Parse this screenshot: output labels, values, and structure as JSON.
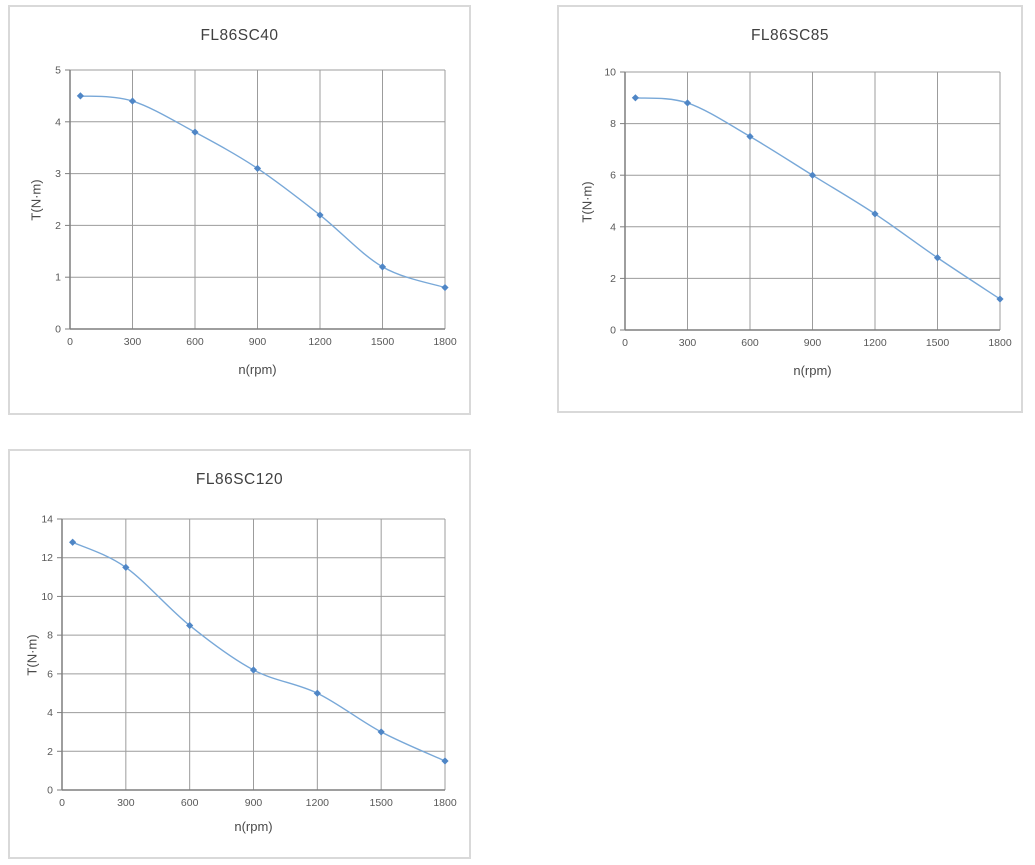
{
  "colors": {
    "grid": "#9c9c9c",
    "axis": "#7f7f7f",
    "panel_border": "#d9d9d9",
    "text": "#595959"
  },
  "chart_data": [
    {
      "type": "line",
      "title": "FL86SC40",
      "xlabel": "n(rpm)",
      "ylabel": "T(N·m)",
      "x": [
        50,
        300,
        600,
        900,
        1200,
        1500,
        1800
      ],
      "y": [
        4.5,
        4.4,
        3.8,
        3.1,
        2.2,
        1.2,
        0.8
      ],
      "xlim": [
        0,
        1800
      ],
      "ylim": [
        0,
        5
      ],
      "xticks": [
        0,
        300,
        600,
        900,
        1200,
        1500,
        1800
      ],
      "yticks": [
        0,
        1,
        2,
        3,
        4,
        5
      ],
      "grid": true,
      "legend": "none",
      "line_color": "#78a8d8",
      "marker_color": "#4f86c6",
      "marker": "diamond"
    },
    {
      "type": "line",
      "title": "FL86SC85",
      "xlabel": "n(rpm)",
      "ylabel": "T(N·m)",
      "x": [
        50,
        300,
        600,
        900,
        1200,
        1500,
        1800
      ],
      "y": [
        9.0,
        8.8,
        7.5,
        6.0,
        4.5,
        2.8,
        1.2
      ],
      "xlim": [
        0,
        1800
      ],
      "ylim": [
        0,
        10
      ],
      "xticks": [
        0,
        300,
        600,
        900,
        1200,
        1500,
        1800
      ],
      "yticks": [
        0,
        2,
        4,
        6,
        8,
        10
      ],
      "grid": true,
      "legend": "none",
      "line_color": "#78a8d8",
      "marker_color": "#4f86c6",
      "marker": "diamond"
    },
    {
      "type": "line",
      "title": "FL86SC120",
      "xlabel": "n(rpm)",
      "ylabel": "T(N·m)",
      "x": [
        50,
        300,
        600,
        900,
        1200,
        1500,
        1800
      ],
      "y": [
        12.8,
        11.5,
        8.5,
        6.2,
        5.0,
        3.0,
        1.5
      ],
      "xlim": [
        0,
        1800
      ],
      "ylim": [
        0,
        14
      ],
      "xticks": [
        0,
        300,
        600,
        900,
        1200,
        1500,
        1800
      ],
      "yticks": [
        0,
        2,
        4,
        6,
        8,
        10,
        12,
        14
      ],
      "grid": true,
      "legend": "none",
      "line_color": "#78a8d8",
      "marker_color": "#4f86c6",
      "marker": "diamond"
    }
  ]
}
